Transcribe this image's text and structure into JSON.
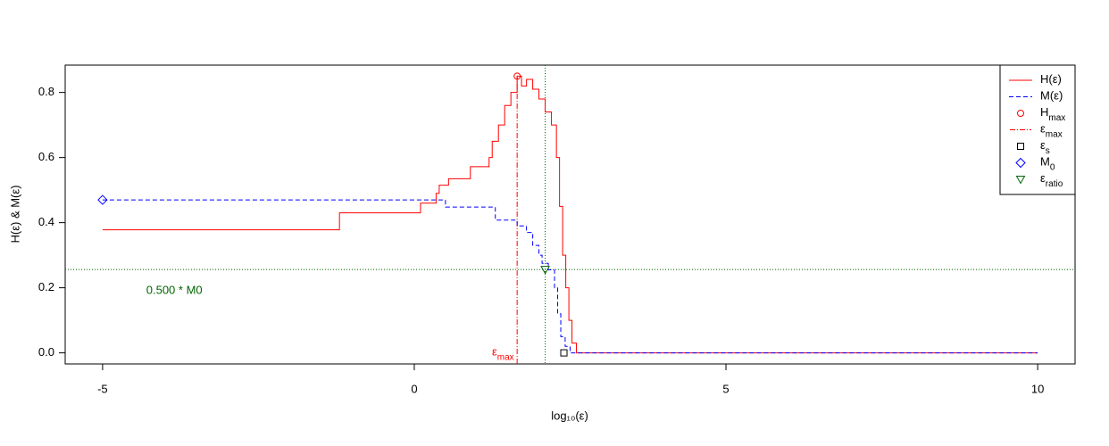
{
  "chart_data": {
    "type": "line",
    "step": "post",
    "xlabel": "log₁₀(ε)",
    "ylabel": "H(ε)  &  M(ε)",
    "xlim": [
      -5.6,
      10.6
    ],
    "xticks": [
      -5,
      0,
      5,
      10
    ],
    "ylim": [
      -0.034,
      0.884
    ],
    "yticks": [
      {
        "value": 0,
        "label": "0.0"
      },
      0.2,
      0.4,
      0.6,
      0.8
    ],
    "legend": "topright",
    "series": [
      {
        "name": "H(ε)",
        "color": "#ff0000",
        "dash": "none",
        "x": [
          -5,
          -1.2,
          0.1,
          0.35,
          0.4,
          0.55,
          0.9,
          1.2,
          1.25,
          1.35,
          1.45,
          1.55,
          1.65,
          1.72,
          1.8,
          1.9,
          2.0,
          2.1,
          2.2,
          2.28,
          2.33,
          2.38,
          2.43,
          2.48,
          2.53,
          2.6,
          10
        ],
        "values": [
          0.378,
          0.43,
          0.46,
          0.49,
          0.515,
          0.535,
          0.572,
          0.6,
          0.65,
          0.7,
          0.76,
          0.8,
          0.85,
          0.82,
          0.84,
          0.81,
          0.78,
          0.74,
          0.7,
          0.6,
          0.45,
          0.3,
          0.2,
          0.1,
          0.03,
          0,
          0
        ]
      },
      {
        "name": "M(ε)",
        "color": "#0000ff",
        "dash": "5,3",
        "x": [
          -5,
          0.5,
          1.3,
          1.65,
          1.8,
          1.9,
          2.0,
          2.05,
          2.15,
          2.25,
          2.3,
          2.35,
          2.42,
          2.5,
          10
        ],
        "values": [
          0.47,
          0.448,
          0.408,
          0.39,
          0.37,
          0.33,
          0.3,
          0.275,
          0.255,
          0.2,
          0.12,
          0.05,
          0.02,
          0,
          0
        ]
      }
    ],
    "markers": [
      {
        "name": "H",
        "sub": "max",
        "shape": "circle",
        "color": "#ff0000",
        "x": 1.65,
        "y": 0.85
      },
      {
        "name": "ε",
        "sub": "max",
        "shape": "vline",
        "color": "#ff0000",
        "x": 1.65,
        "y": 0.85
      },
      {
        "name": "ε",
        "sub": "s",
        "shape": "square",
        "color": "#000000",
        "x": 2.4,
        "y": 0
      },
      {
        "name": "M",
        "sub": "0",
        "shape": "diamond",
        "color": "#0000ff",
        "x": -5,
        "y": 0.47
      },
      {
        "name": "ε",
        "sub": "ratio",
        "shape": "triangle",
        "color": "#006400",
        "x": 2.1,
        "y": 0.256
      }
    ],
    "annotations": [
      {
        "text": "ε",
        "sub": "max",
        "x": 1.6,
        "y": 0.0,
        "color": "#ff0000"
      },
      {
        "text": "0.500 * M0",
        "x": -4.3,
        "y": 0.19,
        "color": "#006400"
      }
    ]
  }
}
